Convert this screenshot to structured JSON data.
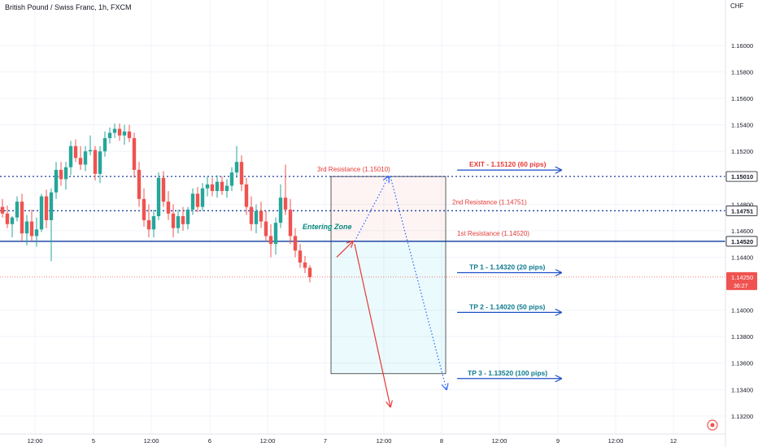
{
  "header": {
    "symbol_title": "British Pound / Swiss Franc, 1h, FXCM",
    "currency": "CHF"
  },
  "colors": {
    "up": "#26a69a",
    "down": "#ef5350",
    "blue_line": "#0d3b9e",
    "dotted_blue": "#1e3fa0",
    "red_text": "#e53935",
    "teal_text": "#00897b",
    "arrow_blue": "#1e4fc8",
    "tp_text": "#0b7a8f",
    "grid": "#f0f3fa"
  },
  "chart_data": {
    "type": "candlestick",
    "yaxis": {
      "ticks": [
        "1.16000",
        "1.15800",
        "1.15600",
        "1.15400",
        "1.15200",
        "1.14800",
        "1.14600",
        "1.14400",
        "1.14000",
        "1.13800",
        "1.13600",
        "1.13400",
        "1.13200"
      ],
      "range": [
        1.1315,
        1.1627
      ]
    },
    "xaxis": {
      "ticks": [
        "12:00",
        "5",
        "12:00",
        "6",
        "12:00",
        "7",
        "12:00",
        "8",
        "12:00",
        "9",
        "12:00",
        "12"
      ]
    },
    "price_labels": [
      {
        "text": "1.15010",
        "value": 1.1501,
        "style": "outline"
      },
      {
        "text": "1.14751",
        "value": 1.14751,
        "style": "outline"
      },
      {
        "text": "1.14520",
        "value": 1.1452,
        "style": "outline"
      },
      {
        "text": "1.14250",
        "sub": "36:27",
        "value": 1.1425,
        "style": "red"
      }
    ],
    "levels": [
      {
        "name": "3rd Resistance",
        "value": 1.1501,
        "label": "3rd Resistance (1.15010)",
        "style": "dotted"
      },
      {
        "name": "2nd Resistance",
        "value": 1.14751,
        "label": "2nd Resistance (1.14751)",
        "style": "dotted"
      },
      {
        "name": "1st Resistance",
        "value": 1.1452,
        "label": "1st Resistance  (1.14520)",
        "style": "solid"
      }
    ],
    "annotations": {
      "entering_zone": "Entering Zone",
      "exit": {
        "label": "EXIT - 1.15120 (60 pips)",
        "value": 1.1512
      },
      "tp1": {
        "label": "TP 1 - 1.14320 (20 pips)",
        "value": 1.1432
      },
      "tp2": {
        "label": "TP 2 - 1.14020 (50 pips)",
        "value": 1.1402
      },
      "tp3": {
        "label": "TP 3 - 1.13520 (100 pips)",
        "value": 1.1352
      }
    },
    "candles": [
      [
        1.1478,
        1.1484,
        1.147,
        1.1473
      ],
      [
        1.1473,
        1.1479,
        1.1462,
        1.1465
      ],
      [
        1.1465,
        1.1471,
        1.1455,
        1.147
      ],
      [
        1.147,
        1.1486,
        1.1467,
        1.1482
      ],
      [
        1.1482,
        1.1488,
        1.1452,
        1.1458
      ],
      [
        1.1458,
        1.1472,
        1.1449,
        1.1467
      ],
      [
        1.1467,
        1.1476,
        1.1452,
        1.1456
      ],
      [
        1.1456,
        1.147,
        1.1448,
        1.1461
      ],
      [
        1.1461,
        1.1488,
        1.1459,
        1.1486
      ],
      [
        1.1486,
        1.1491,
        1.1462,
        1.1468
      ],
      [
        1.1468,
        1.1492,
        1.1437,
        1.1489
      ],
      [
        1.1489,
        1.1512,
        1.1484,
        1.1506
      ],
      [
        1.1506,
        1.1512,
        1.1494,
        1.1499
      ],
      [
        1.1499,
        1.1512,
        1.1491,
        1.1508
      ],
      [
        1.1508,
        1.1528,
        1.1502,
        1.1524
      ],
      [
        1.1524,
        1.1529,
        1.1512,
        1.1515
      ],
      [
        1.1515,
        1.1524,
        1.1506,
        1.151
      ],
      [
        1.151,
        1.1524,
        1.1505,
        1.152
      ],
      [
        1.152,
        1.1532,
        1.1517,
        1.1521
      ],
      [
        1.1521,
        1.1524,
        1.1498,
        1.1503
      ],
      [
        1.1503,
        1.1524,
        1.1496,
        1.152
      ],
      [
        1.152,
        1.1535,
        1.1516,
        1.153
      ],
      [
        1.153,
        1.1538,
        1.1526,
        1.1534
      ],
      [
        1.1534,
        1.1541,
        1.153,
        1.1537
      ],
      [
        1.1537,
        1.1541,
        1.1528,
        1.1532
      ],
      [
        1.1532,
        1.154,
        1.1525,
        1.1535
      ],
      [
        1.1535,
        1.154,
        1.1527,
        1.153
      ],
      [
        1.153,
        1.1534,
        1.15,
        1.1506
      ],
      [
        1.1506,
        1.1512,
        1.1478,
        1.1484
      ],
      [
        1.1484,
        1.1492,
        1.1463,
        1.1468
      ],
      [
        1.1468,
        1.148,
        1.1455,
        1.1461
      ],
      [
        1.1461,
        1.1476,
        1.1455,
        1.1471
      ],
      [
        1.1471,
        1.1504,
        1.1468,
        1.15
      ],
      [
        1.15,
        1.1505,
        1.1478,
        1.1482
      ],
      [
        1.1482,
        1.149,
        1.1468,
        1.1473
      ],
      [
        1.1473,
        1.148,
        1.1455,
        1.1462
      ],
      [
        1.1462,
        1.1476,
        1.1458,
        1.1471
      ],
      [
        1.1471,
        1.1478,
        1.146,
        1.1465
      ],
      [
        1.1465,
        1.1478,
        1.1461,
        1.1476
      ],
      [
        1.1476,
        1.1492,
        1.1472,
        1.1488
      ],
      [
        1.1488,
        1.1493,
        1.1474,
        1.1478
      ],
      [
        1.1478,
        1.1496,
        1.1475,
        1.1492
      ],
      [
        1.1492,
        1.1501,
        1.1486,
        1.1495
      ],
      [
        1.1495,
        1.15,
        1.1486,
        1.149
      ],
      [
        1.149,
        1.1502,
        1.1485,
        1.1497
      ],
      [
        1.1497,
        1.1501,
        1.1487,
        1.149
      ],
      [
        1.149,
        1.1499,
        1.1485,
        1.1494
      ],
      [
        1.1494,
        1.1508,
        1.149,
        1.1504
      ],
      [
        1.1504,
        1.1524,
        1.15,
        1.1512
      ],
      [
        1.1512,
        1.1517,
        1.149,
        1.1495
      ],
      [
        1.1495,
        1.15,
        1.1472,
        1.1478
      ],
      [
        1.1478,
        1.1486,
        1.146,
        1.1465
      ],
      [
        1.1465,
        1.148,
        1.1458,
        1.1475
      ],
      [
        1.1475,
        1.1482,
        1.1462,
        1.1467
      ],
      [
        1.1467,
        1.1475,
        1.1452,
        1.1456
      ],
      [
        1.1456,
        1.1465,
        1.144,
        1.145
      ],
      [
        1.145,
        1.147,
        1.1442,
        1.1466
      ],
      [
        1.1466,
        1.1495,
        1.1462,
        1.1485
      ],
      [
        1.1485,
        1.151,
        1.1472,
        1.1476
      ],
      [
        1.1476,
        1.1484,
        1.145,
        1.1456
      ],
      [
        1.1456,
        1.1462,
        1.144,
        1.1445
      ],
      [
        1.1445,
        1.145,
        1.1432,
        1.1436
      ],
      [
        1.1436,
        1.1441,
        1.1428,
        1.1432
      ],
      [
        1.1432,
        1.1434,
        1.1421,
        1.1425
      ]
    ]
  }
}
